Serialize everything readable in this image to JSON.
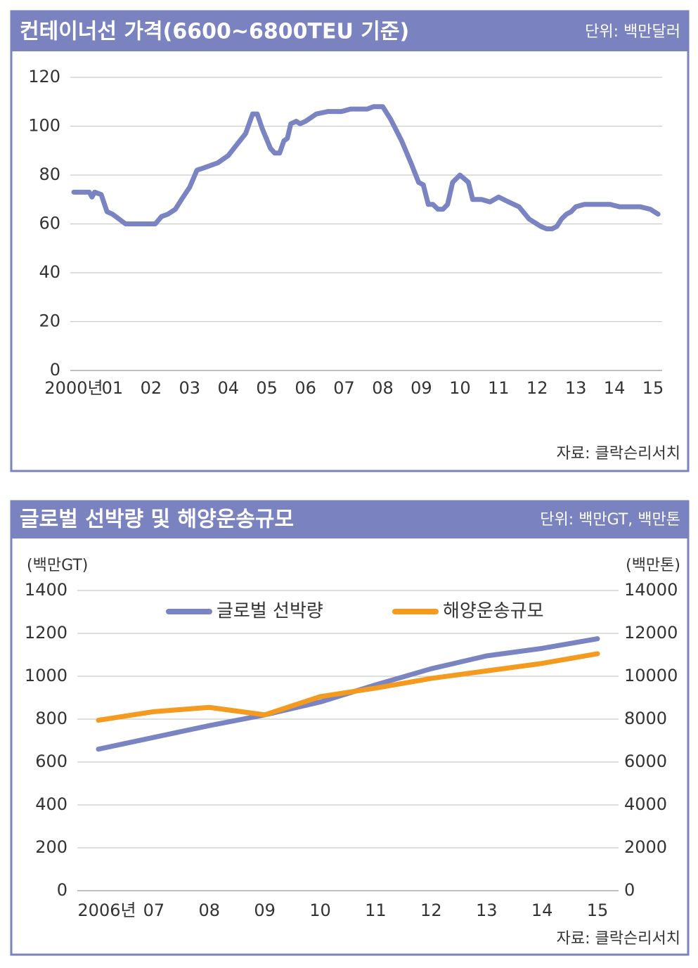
{
  "chart_data": [
    {
      "type": "line",
      "title": "컨테이너선 가격(6600~6800TEU 기준)",
      "unit": "단위: 백만달러",
      "source": "자료: 클락슨리서치",
      "xlim": [
        2000,
        2015.2
      ],
      "xticks": [
        {
          "value": 2000,
          "label": "2000년"
        },
        {
          "value": 2001,
          "label": "01"
        },
        {
          "value": 2002,
          "label": "02"
        },
        {
          "value": 2003,
          "label": "03"
        },
        {
          "value": 2004,
          "label": "04"
        },
        {
          "value": 2005,
          "label": "05"
        },
        {
          "value": 2006,
          "label": "06"
        },
        {
          "value": 2007,
          "label": "07"
        },
        {
          "value": 2008,
          "label": "08"
        },
        {
          "value": 2009,
          "label": "09"
        },
        {
          "value": 2010,
          "label": "10"
        },
        {
          "value": 2011,
          "label": "11"
        },
        {
          "value": 2012,
          "label": "12"
        },
        {
          "value": 2013,
          "label": "13"
        },
        {
          "value": 2014,
          "label": "14"
        },
        {
          "value": 2015,
          "label": "15"
        }
      ],
      "ylim": [
        0,
        120
      ],
      "yticks": [
        0,
        20,
        40,
        60,
        80,
        100,
        120
      ],
      "grid": true,
      "x": [
        2000,
        2000.4,
        2000.47,
        2000.54,
        2000.71,
        2000.86,
        2001,
        2001.34,
        2002.11,
        2002.27,
        2002.44,
        2002.63,
        2002.79,
        2003,
        2003.19,
        2003.38,
        2003.73,
        2004,
        2004.25,
        2004.45,
        2004.63,
        2004.75,
        2004.88,
        2005.09,
        2005.2,
        2005.33,
        2005.44,
        2005.53,
        2005.62,
        2005.76,
        2005.86,
        2006,
        2006.28,
        2006.58,
        2006.93,
        2007.17,
        2007.6,
        2007.76,
        2008,
        2008.2,
        2008.49,
        2008.73,
        2008.93,
        2009.05,
        2009.18,
        2009.3,
        2009.43,
        2009.56,
        2009.68,
        2009.81,
        2010,
        2010.22,
        2010.33,
        2010.56,
        2010.78,
        2011,
        2011.26,
        2011.53,
        2011.79,
        2012.09,
        2012.24,
        2012.39,
        2012.51,
        2012.63,
        2012.76,
        2012.88,
        2013,
        2013.22,
        2013.67,
        2013.89,
        2014.13,
        2014.53,
        2014.67,
        2014.93,
        2015.13
      ],
      "series": [
        {
          "name": "컨테이너선 가격",
          "color": "#7a84c3",
          "values": [
            73,
            73,
            71,
            73,
            72,
            65,
            64,
            60,
            60,
            63,
            64,
            66,
            70,
            75,
            82,
            83,
            85,
            88,
            93,
            97,
            105,
            105,
            99,
            91,
            89,
            89,
            94,
            95,
            101,
            102,
            101,
            102,
            105,
            106,
            106,
            107,
            107,
            108,
            108,
            103,
            94,
            85,
            77,
            76,
            68,
            68,
            66,
            66,
            68,
            77,
            80,
            77,
            70,
            70,
            69,
            71,
            69,
            67,
            62,
            59,
            58,
            58,
            59,
            62,
            64,
            65,
            67,
            68,
            68,
            68,
            67,
            67,
            67,
            66,
            64
          ]
        }
      ]
    },
    {
      "type": "line",
      "title": "글로벌 선박량 및 해양운송규모",
      "unit": "단위: 백만GT, 백만톤",
      "source": "자료: 클락슨리서치",
      "y_label": "(백만GT)",
      "y2_label": "(백만톤)",
      "categories": [
        "2006년",
        "07",
        "08",
        "09",
        "10",
        "11",
        "12",
        "13",
        "14",
        "15"
      ],
      "ylim": [
        0,
        1400
      ],
      "yticks": [
        0,
        200,
        400,
        600,
        800,
        1000,
        1200,
        1400
      ],
      "y2lim": [
        0,
        14000
      ],
      "y2ticks": [
        0,
        2000,
        4000,
        6000,
        8000,
        10000,
        12000,
        14000
      ],
      "grid": true,
      "legend": "top",
      "series": [
        {
          "name": "글로벌 선박량",
          "color": "#7a84c3",
          "values": [
            660,
            715,
            770,
            820,
            880,
            960,
            1035,
            1095,
            1130,
            1175
          ]
        },
        {
          "name": "해양운송규모",
          "color": "#f39a1f",
          "axis": "y2",
          "values": [
            7950,
            8350,
            8550,
            8200,
            9050,
            9450,
            9900,
            10250,
            10600,
            11050
          ]
        }
      ]
    }
  ]
}
